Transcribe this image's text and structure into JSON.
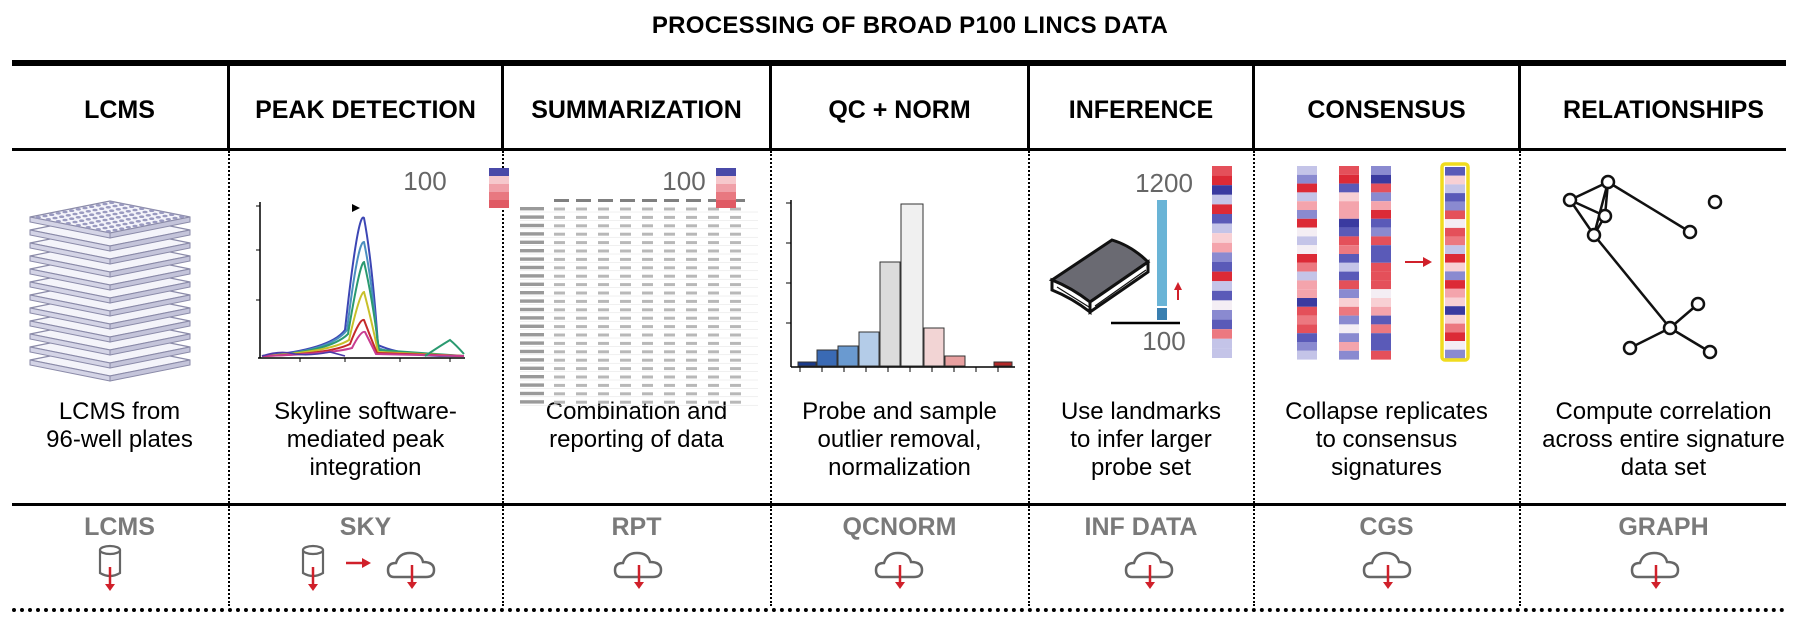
{
  "title": "PROCESSING OF BROAD P100 LINCS DATA",
  "steps": [
    {
      "header": "LCMS",
      "desc": [
        "LCMS from",
        "96-well plates"
      ],
      "code": "LCMS"
    },
    {
      "header": "PEAK DETECTION",
      "desc": [
        "Skyline software-",
        "mediated peak",
        "integration"
      ],
      "code": "SKY"
    },
    {
      "header": "SUMMARIZATION",
      "desc": [
        "Combination and",
        "reporting of data"
      ],
      "code": "RPT"
    },
    {
      "header": "QC + NORM",
      "desc": [
        "Probe and sample",
        "outlier removal,",
        "normalization"
      ],
      "code": "QCNORM"
    },
    {
      "header": "INFERENCE",
      "desc": [
        "Use landmarks",
        "to infer larger",
        "probe set"
      ],
      "code": "INF DATA"
    },
    {
      "header": "CONSENSUS",
      "desc": [
        "Collapse replicates",
        "to consensus",
        "signatures"
      ],
      "code": "CGS"
    },
    {
      "header": "RELATIONSHIPS",
      "desc": [
        "Compute correlation",
        "across entire signature",
        "data set"
      ],
      "code": "GRAPH"
    }
  ],
  "figure_labels": {
    "peak_count": "100",
    "summary_count": "100",
    "inference_top": "1200",
    "inference_bottom": "100"
  },
  "colors": {
    "accent_red": "#d0202a",
    "cyan_bar": "#6ab4d6",
    "highlight": "#f0dc1e",
    "icon_gray": "#666666"
  },
  "icons": [
    "stacked-plates-icon",
    "database-icon",
    "cloud-download-icon",
    "book-icon",
    "network-graph-icon"
  ]
}
